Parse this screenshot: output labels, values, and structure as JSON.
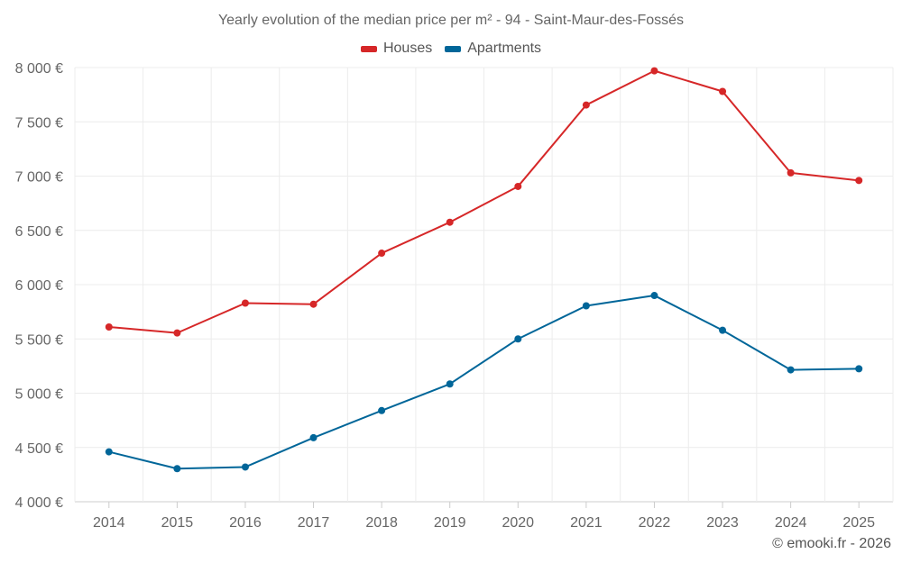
{
  "chart_data": {
    "type": "line",
    "title": "Yearly evolution of the median price per m² - 94 - Saint-Maur-des-Fossés",
    "categories": [
      "2014",
      "2015",
      "2016",
      "2017",
      "2018",
      "2019",
      "2020",
      "2021",
      "2022",
      "2023",
      "2024",
      "2025"
    ],
    "series": [
      {
        "name": "Houses",
        "color": "#d62728",
        "values": [
          5610,
          5555,
          5830,
          5820,
          6290,
          6575,
          6905,
          7655,
          7970,
          7780,
          7030,
          6960
        ]
      },
      {
        "name": "Apartments",
        "color": "#006699",
        "values": [
          4460,
          4305,
          4320,
          4590,
          4840,
          5085,
          5500,
          5805,
          5900,
          5580,
          5215,
          5225
        ]
      }
    ],
    "ylim": [
      4000,
      8000
    ],
    "yticks": [
      4000,
      4500,
      5000,
      5500,
      6000,
      6500,
      7000,
      7500,
      8000
    ],
    "ytick_labels": [
      "4 000 €",
      "4 500 €",
      "5 000 €",
      "5 500 €",
      "6 000 €",
      "6 500 €",
      "7 000 €",
      "7 500 €",
      "8 000 €"
    ],
    "xlabel": "",
    "ylabel": "",
    "grid": true,
    "legend_position": "top-center"
  },
  "watermark": "© emooki.fr - 2026"
}
